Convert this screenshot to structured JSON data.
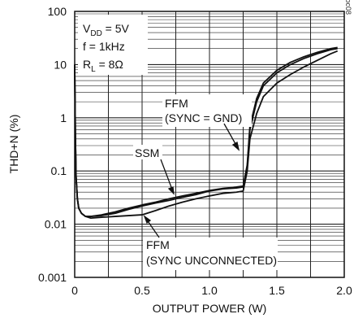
{
  "chart_data": {
    "type": "line",
    "xlabel": "OUTPUT POWER (W)",
    "ylabel": "THD+N (%)",
    "xlim": [
      0,
      2.0
    ],
    "ylim": [
      0.001,
      100
    ],
    "yscale": "log",
    "grid": true,
    "x_tick_labels": [
      "0",
      "0.5",
      "1.0",
      "1.5",
      "2.0"
    ],
    "y_tick_labels": [
      "0.001",
      "0.01",
      "0.1",
      "1",
      "10",
      "100"
    ],
    "watermark": "MAX9700 toc08",
    "conditions": {
      "vdd_main": "V",
      "vdd_sub": "DD",
      "vdd_value": " = 5V",
      "freq": "f = 1kHz",
      "rl_main": "R",
      "rl_sub": "L",
      "rl_value": " = 8Ω"
    },
    "annotations": {
      "ffm_gnd_line1": "FFM",
      "ffm_gnd_line2": "(SYNC = GND)",
      "ssm": "SSM",
      "ffm_unc_line1": "FFM",
      "ffm_unc_line2": "(SYNC UNCONNECTED)"
    },
    "series": [
      {
        "x": [
          0.0,
          0.005,
          0.01,
          0.02,
          0.03,
          0.05,
          0.08,
          0.12,
          0.2,
          0.3,
          0.4,
          0.5,
          0.6,
          0.7,
          0.8,
          0.9,
          1.0,
          1.1,
          1.2,
          1.25,
          1.28,
          1.3,
          1.35,
          1.4,
          1.5,
          1.6,
          1.7,
          1.8,
          1.9,
          1.95
        ],
        "y": [
          10.0,
          0.5,
          0.08,
          0.03,
          0.02,
          0.016,
          0.014,
          0.013,
          0.0135,
          0.014,
          0.0145,
          0.015,
          0.018,
          0.022,
          0.026,
          0.03,
          0.034,
          0.038,
          0.04,
          0.042,
          0.1,
          0.4,
          1.2,
          2.5,
          4.5,
          6.5,
          9.0,
          12.0,
          16.0,
          18.0
        ]
      },
      {
        "x": [
          0.0,
          0.005,
          0.01,
          0.02,
          0.03,
          0.05,
          0.08,
          0.12,
          0.2,
          0.3,
          0.4,
          0.5,
          0.6,
          0.7,
          0.8,
          0.9,
          1.0,
          1.1,
          1.2,
          1.25,
          1.28,
          1.3,
          1.35,
          1.4,
          1.5,
          1.6,
          1.7,
          1.8,
          1.9,
          1.95
        ],
        "y": [
          10.0,
          0.5,
          0.08,
          0.03,
          0.02,
          0.016,
          0.014,
          0.014,
          0.0145,
          0.016,
          0.019,
          0.022,
          0.025,
          0.028,
          0.032,
          0.036,
          0.042,
          0.046,
          0.048,
          0.05,
          0.12,
          0.6,
          2.0,
          4.0,
          7.0,
          10.0,
          13.0,
          16.0,
          19.0,
          20.0
        ]
      },
      {
        "x": [
          0.0,
          0.005,
          0.01,
          0.02,
          0.03,
          0.05,
          0.08,
          0.12,
          0.2,
          0.3,
          0.4,
          0.5,
          0.6,
          0.7,
          0.8,
          0.9,
          1.0,
          1.1,
          1.2,
          1.25,
          1.28,
          1.3,
          1.35,
          1.4,
          1.5,
          1.6,
          1.7,
          1.8,
          1.9,
          1.95
        ],
        "y": [
          10.0,
          0.5,
          0.08,
          0.03,
          0.02,
          0.016,
          0.014,
          0.014,
          0.015,
          0.017,
          0.02,
          0.023,
          0.026,
          0.03,
          0.034,
          0.038,
          0.043,
          0.047,
          0.05,
          0.052,
          0.13,
          0.7,
          2.3,
          4.5,
          7.8,
          11.0,
          14.0,
          17.0,
          20.0,
          21.0
        ]
      }
    ]
  }
}
